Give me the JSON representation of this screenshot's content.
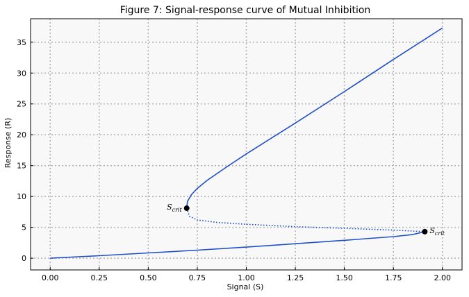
{
  "chart_data": {
    "type": "line",
    "title": "Figure 7: Signal-response curve of Mutual Inhibition",
    "xlabel": "Signal (S)",
    "ylabel": "Response (R)",
    "xlim": [
      -0.1,
      2.1
    ],
    "ylim": [
      -1.9,
      38.8
    ],
    "xticks": [
      0.0,
      0.25,
      0.5,
      0.75,
      1.0,
      1.25,
      1.5,
      1.75,
      2.0
    ],
    "xtick_labels": [
      "0.00",
      "0.25",
      "0.50",
      "0.75",
      "1.00",
      "1.25",
      "1.50",
      "1.75",
      "2.00"
    ],
    "yticks": [
      0,
      5,
      10,
      15,
      20,
      25,
      30,
      35
    ],
    "ytick_labels": [
      "0",
      "5",
      "10",
      "15",
      "20",
      "25",
      "30",
      "35"
    ],
    "grid": true,
    "grid_style": "dotted",
    "background": "#f8f8f8",
    "line_color": "#1f4fc8",
    "series": [
      {
        "style": "solid",
        "x": [
          0.0,
          0.25,
          0.5,
          0.75,
          1.0,
          1.25,
          1.5,
          1.75,
          1.85,
          1.91
        ],
        "y": [
          0.0,
          0.4,
          0.85,
          1.3,
          1.8,
          2.35,
          2.9,
          3.5,
          3.85,
          4.3
        ]
      },
      {
        "style": "dotted",
        "x": [
          0.696,
          0.71,
          0.75,
          0.85,
          1.0,
          1.25,
          1.5,
          1.75,
          1.91
        ],
        "y": [
          8.1,
          6.8,
          6.2,
          5.8,
          5.5,
          5.1,
          4.85,
          4.55,
          4.3
        ]
      },
      {
        "style": "solid",
        "x": [
          0.696,
          0.7,
          0.72,
          0.75,
          0.8,
          0.9,
          1.0,
          1.25,
          1.5,
          1.75,
          2.0
        ],
        "y": [
          8.1,
          9.2,
          10.3,
          11.3,
          12.6,
          14.8,
          16.9,
          21.9,
          27.0,
          32.2,
          37.3
        ]
      }
    ],
    "points": [
      {
        "x": 0.696,
        "y": 8.1,
        "label": "S",
        "sub": "crit",
        "label_side": "left"
      },
      {
        "x": 1.91,
        "y": 4.3,
        "label": "S",
        "sub": "crit",
        "label_side": "right"
      }
    ]
  }
}
